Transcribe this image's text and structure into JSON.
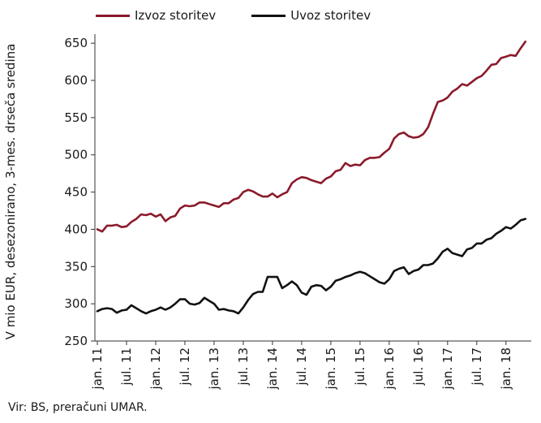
{
  "chart_data": {
    "type": "line",
    "ylabel": "V mio EUR, desezonirano, 3-mes. drseča sredina",
    "ylim": [
      250,
      660
    ],
    "yticks": [
      250,
      300,
      350,
      400,
      450,
      500,
      550,
      600,
      650
    ],
    "grid": false,
    "legend": "top",
    "x_start": "jan. 11",
    "x_tick_labels": [
      "jan. 11",
      "jul. 11",
      "jan. 12",
      "jul. 12",
      "jan. 13",
      "jul. 13",
      "jan. 14",
      "jul. 14",
      "jan. 15",
      "jul. 15",
      "jan. 16",
      "jul. 16",
      "jan. 17",
      "jul. 17",
      "jan. 18"
    ],
    "series": [
      {
        "name": "Izvoz storitev",
        "color": "#8b1a2b",
        "values": [
          400,
          397,
          405,
          405,
          406,
          403,
          404,
          410,
          414,
          420,
          419,
          421,
          417,
          420,
          411,
          416,
          418,
          428,
          432,
          431,
          432,
          436,
          436,
          434,
          432,
          430,
          435,
          435,
          440,
          442,
          450,
          453,
          451,
          447,
          444,
          444,
          448,
          443,
          447,
          450,
          462,
          467,
          470,
          469,
          466,
          464,
          462,
          468,
          471,
          478,
          480,
          489,
          485,
          487,
          486,
          493,
          496,
          496,
          497,
          503,
          508,
          522,
          528,
          530,
          525,
          523,
          524,
          528,
          537,
          555,
          571,
          573,
          577,
          585,
          589,
          595,
          593,
          598,
          603,
          606,
          613,
          621,
          622,
          630,
          632,
          634,
          633,
          643,
          652
        ]
      },
      {
        "name": "Uvoz storitev",
        "color": "#111111",
        "values": [
          290,
          293,
          294,
          293,
          288,
          291,
          292,
          298,
          294,
          290,
          287,
          290,
          292,
          295,
          292,
          295,
          300,
          306,
          306,
          300,
          299,
          301,
          308,
          304,
          300,
          292,
          293,
          291,
          290,
          287,
          295,
          305,
          313,
          316,
          316,
          336,
          336,
          336,
          321,
          325,
          330,
          325,
          315,
          312,
          323,
          325,
          324,
          318,
          323,
          331,
          333,
          336,
          338,
          341,
          343,
          341,
          337,
          333,
          329,
          327,
          333,
          344,
          347,
          349,
          340,
          344,
          346,
          352,
          352,
          354,
          361,
          370,
          374,
          368,
          366,
          364,
          373,
          375,
          381,
          381,
          386,
          388,
          394,
          398,
          403,
          401,
          406,
          412,
          414
        ]
      }
    ],
    "source": "Vir: BS, preračuni UMAR."
  }
}
